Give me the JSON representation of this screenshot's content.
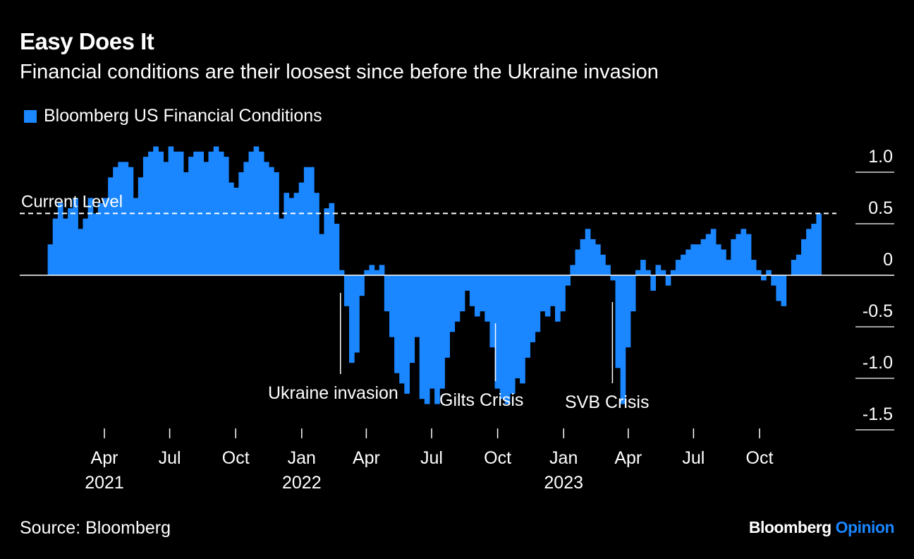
{
  "title": "Easy Does It",
  "subtitle": "Financial conditions are their loosest since before the Ukraine invasion",
  "source": "Source: Bloomberg",
  "brand": {
    "name": "Bloomberg",
    "suffix": "Opinion"
  },
  "colors": {
    "bar": "#1a86ff",
    "background": "#000000",
    "text": "#ffffff",
    "brand_accent": "#1a86ff"
  },
  "chart_data": {
    "type": "bar",
    "legend": [
      "Bloomberg US Financial Conditions"
    ],
    "reference_line": {
      "label": "Current Level",
      "value": 0.6
    },
    "annotations": [
      {
        "label": "Ukraine invasion",
        "date": "2022-02-24"
      },
      {
        "label": "Gilts Crisis",
        "date": "2022-09-28"
      },
      {
        "label": "SVB Crisis",
        "date": "2023-03-10"
      }
    ],
    "ylim": [
      -1.5,
      1.2
    ],
    "y_ticks": [
      {
        "value": 1.0,
        "label": "1.0"
      },
      {
        "value": 0.5,
        "label": "0.5"
      },
      {
        "value": 0,
        "label": "0"
      },
      {
        "value": -0.5,
        "label": "-0.5"
      },
      {
        "value": -1.0,
        "label": "-1.0"
      },
      {
        "value": -1.5,
        "label": "-1.5"
      }
    ],
    "x_range": [
      "2021-01-01",
      "2023-12-31"
    ],
    "x_ticks": [
      {
        "date": "2021-04-01",
        "label": "Apr",
        "year": "2021"
      },
      {
        "date": "2021-07-01",
        "label": "Jul",
        "year": ""
      },
      {
        "date": "2021-10-01",
        "label": "Oct",
        "year": ""
      },
      {
        "date": "2022-01-01",
        "label": "Jan",
        "year": "2022"
      },
      {
        "date": "2022-04-01",
        "label": "Apr",
        "year": ""
      },
      {
        "date": "2022-07-01",
        "label": "Jul",
        "year": ""
      },
      {
        "date": "2022-10-01",
        "label": "Oct",
        "year": ""
      },
      {
        "date": "2023-01-01",
        "label": "Jan",
        "year": "2023"
      },
      {
        "date": "2023-04-01",
        "label": "Apr",
        "year": ""
      },
      {
        "date": "2023-07-01",
        "label": "Jul",
        "year": ""
      },
      {
        "date": "2023-10-01",
        "label": "Oct",
        "year": ""
      }
    ],
    "series": [
      {
        "points": [
          [
            "2021-01-12",
            0.3
          ],
          [
            "2021-01-19",
            0.55
          ],
          [
            "2021-01-26",
            0.7
          ],
          [
            "2021-02-02",
            0.55
          ],
          [
            "2021-02-09",
            0.65
          ],
          [
            "2021-02-16",
            0.75
          ],
          [
            "2021-02-23",
            0.45
          ],
          [
            "2021-03-02",
            0.55
          ],
          [
            "2021-03-09",
            0.75
          ],
          [
            "2021-03-16",
            0.6
          ],
          [
            "2021-03-23",
            0.7
          ],
          [
            "2021-03-30",
            0.75
          ],
          [
            "2021-04-06",
            0.95
          ],
          [
            "2021-04-13",
            1.05
          ],
          [
            "2021-04-20",
            1.1
          ],
          [
            "2021-04-27",
            1.1
          ],
          [
            "2021-05-04",
            1.05
          ],
          [
            "2021-05-11",
            0.75
          ],
          [
            "2021-05-18",
            0.95
          ],
          [
            "2021-05-25",
            1.15
          ],
          [
            "2021-06-01",
            1.2
          ],
          [
            "2021-06-08",
            1.25
          ],
          [
            "2021-06-15",
            1.2
          ],
          [
            "2021-06-22",
            1.1
          ],
          [
            "2021-06-29",
            1.25
          ],
          [
            "2021-07-06",
            1.2
          ],
          [
            "2021-07-13",
            1.2
          ],
          [
            "2021-07-20",
            1.0
          ],
          [
            "2021-07-27",
            1.15
          ],
          [
            "2021-08-03",
            1.2
          ],
          [
            "2021-08-10",
            1.2
          ],
          [
            "2021-08-17",
            1.1
          ],
          [
            "2021-08-24",
            1.2
          ],
          [
            "2021-08-31",
            1.25
          ],
          [
            "2021-09-07",
            1.2
          ],
          [
            "2021-09-14",
            1.15
          ],
          [
            "2021-09-21",
            0.9
          ],
          [
            "2021-09-28",
            0.85
          ],
          [
            "2021-10-05",
            1.0
          ],
          [
            "2021-10-12",
            1.1
          ],
          [
            "2021-10-19",
            1.2
          ],
          [
            "2021-10-26",
            1.25
          ],
          [
            "2021-11-02",
            1.2
          ],
          [
            "2021-11-09",
            1.1
          ],
          [
            "2021-11-16",
            1.05
          ],
          [
            "2021-11-23",
            1.0
          ],
          [
            "2021-11-30",
            0.55
          ],
          [
            "2021-12-07",
            0.8
          ],
          [
            "2021-12-14",
            0.75
          ],
          [
            "2021-12-21",
            0.8
          ],
          [
            "2021-12-28",
            0.9
          ],
          [
            "2022-01-04",
            1.05
          ],
          [
            "2022-01-11",
            1.05
          ],
          [
            "2022-01-18",
            0.8
          ],
          [
            "2022-01-25",
            0.4
          ],
          [
            "2022-02-01",
            0.65
          ],
          [
            "2022-02-08",
            0.7
          ],
          [
            "2022-02-15",
            0.5
          ],
          [
            "2022-02-22",
            0.05
          ],
          [
            "2022-03-01",
            -0.3
          ],
          [
            "2022-03-08",
            -0.85
          ],
          [
            "2022-03-15",
            -0.75
          ],
          [
            "2022-03-22",
            -0.2
          ],
          [
            "2022-03-29",
            0.05
          ],
          [
            "2022-04-05",
            0.1
          ],
          [
            "2022-04-12",
            0.05
          ],
          [
            "2022-04-19",
            0.1
          ],
          [
            "2022-04-26",
            -0.35
          ],
          [
            "2022-05-03",
            -0.6
          ],
          [
            "2022-05-10",
            -0.95
          ],
          [
            "2022-05-17",
            -1.05
          ],
          [
            "2022-05-24",
            -1.15
          ],
          [
            "2022-05-31",
            -0.85
          ],
          [
            "2022-06-07",
            -0.6
          ],
          [
            "2022-06-14",
            -1.2
          ],
          [
            "2022-06-21",
            -1.25
          ],
          [
            "2022-06-28",
            -1.1
          ],
          [
            "2022-07-05",
            -1.25
          ],
          [
            "2022-07-12",
            -1.1
          ],
          [
            "2022-07-19",
            -0.8
          ],
          [
            "2022-07-26",
            -0.55
          ],
          [
            "2022-08-02",
            -0.45
          ],
          [
            "2022-08-09",
            -0.35
          ],
          [
            "2022-08-16",
            -0.15
          ],
          [
            "2022-08-23",
            -0.3
          ],
          [
            "2022-08-30",
            -0.4
          ],
          [
            "2022-09-06",
            -0.35
          ],
          [
            "2022-09-13",
            -0.45
          ],
          [
            "2022-09-20",
            -0.7
          ],
          [
            "2022-09-27",
            -1.1
          ],
          [
            "2022-10-04",
            -1.2
          ],
          [
            "2022-10-11",
            -1.25
          ],
          [
            "2022-10-18",
            -1.15
          ],
          [
            "2022-10-25",
            -1.0
          ],
          [
            "2022-11-01",
            -1.05
          ],
          [
            "2022-11-08",
            -0.8
          ],
          [
            "2022-11-15",
            -0.65
          ],
          [
            "2022-11-22",
            -0.55
          ],
          [
            "2022-11-29",
            -0.35
          ],
          [
            "2022-12-06",
            -0.4
          ],
          [
            "2022-12-13",
            -0.3
          ],
          [
            "2022-12-20",
            -0.45
          ],
          [
            "2022-12-27",
            -0.35
          ],
          [
            "2023-01-03",
            -0.1
          ],
          [
            "2023-01-10",
            0.1
          ],
          [
            "2023-01-17",
            0.25
          ],
          [
            "2023-01-24",
            0.35
          ],
          [
            "2023-01-31",
            0.45
          ],
          [
            "2023-02-07",
            0.35
          ],
          [
            "2023-02-14",
            0.3
          ],
          [
            "2023-02-21",
            0.2
          ],
          [
            "2023-02-28",
            0.1
          ],
          [
            "2023-03-07",
            -0.05
          ],
          [
            "2023-03-14",
            -0.9
          ],
          [
            "2023-03-21",
            -1.25
          ],
          [
            "2023-03-28",
            -0.7
          ],
          [
            "2023-04-04",
            -0.35
          ],
          [
            "2023-04-11",
            0.05
          ],
          [
            "2023-04-18",
            0.15
          ],
          [
            "2023-04-25",
            0.05
          ],
          [
            "2023-05-02",
            -0.15
          ],
          [
            "2023-05-09",
            0.1
          ],
          [
            "2023-05-16",
            0.05
          ],
          [
            "2023-05-23",
            -0.1
          ],
          [
            "2023-05-30",
            0.05
          ],
          [
            "2023-06-06",
            0.15
          ],
          [
            "2023-06-13",
            0.2
          ],
          [
            "2023-06-20",
            0.25
          ],
          [
            "2023-06-27",
            0.3
          ],
          [
            "2023-07-04",
            0.3
          ],
          [
            "2023-07-11",
            0.35
          ],
          [
            "2023-07-18",
            0.4
          ],
          [
            "2023-07-25",
            0.45
          ],
          [
            "2023-08-01",
            0.3
          ],
          [
            "2023-08-08",
            0.25
          ],
          [
            "2023-08-15",
            0.15
          ],
          [
            "2023-08-22",
            0.35
          ],
          [
            "2023-08-29",
            0.4
          ],
          [
            "2023-09-05",
            0.45
          ],
          [
            "2023-09-12",
            0.4
          ],
          [
            "2023-09-19",
            0.15
          ],
          [
            "2023-09-26",
            0.05
          ],
          [
            "2023-10-03",
            -0.05
          ],
          [
            "2023-10-10",
            0.05
          ],
          [
            "2023-10-17",
            -0.1
          ],
          [
            "2023-10-24",
            -0.25
          ],
          [
            "2023-10-31",
            -0.3
          ],
          [
            "2023-11-07",
            0.0
          ],
          [
            "2023-11-14",
            0.15
          ],
          [
            "2023-11-21",
            0.2
          ],
          [
            "2023-11-28",
            0.35
          ],
          [
            "2023-12-05",
            0.45
          ],
          [
            "2023-12-12",
            0.5
          ],
          [
            "2023-12-19",
            0.6
          ]
        ]
      }
    ]
  }
}
